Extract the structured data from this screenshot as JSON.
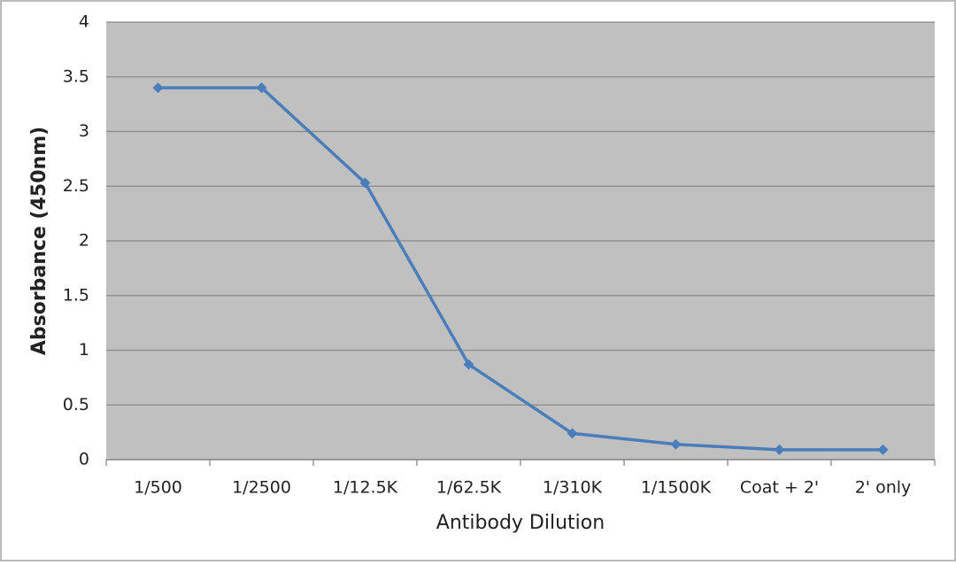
{
  "chart_data": {
    "type": "line",
    "x_label": "Antibody Dilution",
    "y_label": "Absorbance (450nm)",
    "categories": [
      "1/500",
      "1/2500",
      "1/12.5K",
      "1/62.5K",
      "1/310K",
      "1/1500K",
      "Coat + 2'",
      "2' only"
    ],
    "values": [
      3.4,
      3.4,
      2.53,
      0.87,
      0.24,
      0.14,
      0.09,
      0.09
    ],
    "color": "#4a7ebb",
    "ylim": [
      0,
      4
    ],
    "yticks": [
      0,
      0.5,
      1,
      1.5,
      2,
      2.5,
      3,
      3.5,
      4
    ],
    "grid": true
  }
}
